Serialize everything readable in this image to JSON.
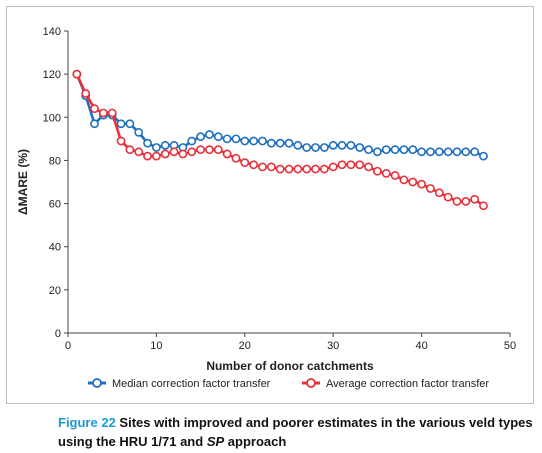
{
  "chart_data": {
    "type": "line",
    "xlabel": "Number of donor catchments",
    "ylabel": "ΔMARE (%)",
    "xlim": [
      0,
      50
    ],
    "ylim": [
      0,
      140
    ],
    "xticks": [
      0,
      10,
      20,
      30,
      40,
      50
    ],
    "yticks": [
      0,
      20,
      40,
      60,
      80,
      100,
      120,
      140
    ],
    "grid": false,
    "legend_position": "bottom",
    "x": [
      1,
      2,
      3,
      4,
      5,
      6,
      7,
      8,
      9,
      10,
      11,
      12,
      13,
      14,
      15,
      16,
      17,
      18,
      19,
      20,
      21,
      22,
      23,
      24,
      25,
      26,
      27,
      28,
      29,
      30,
      31,
      32,
      33,
      34,
      35,
      36,
      37,
      38,
      39,
      40,
      41,
      42,
      43,
      44,
      45,
      46,
      47
    ],
    "series": [
      {
        "name": "Median correction factor transfer",
        "color": "#1f6fbf",
        "values": [
          120,
          110,
          97,
          101,
          101,
          97,
          97,
          93,
          88,
          86,
          87,
          87,
          86,
          89,
          91,
          92,
          91,
          90,
          90,
          89,
          89,
          89,
          88,
          88,
          88,
          87,
          86,
          86,
          86,
          87,
          87,
          87,
          86,
          85,
          84,
          85,
          85,
          85,
          85,
          84,
          84,
          84,
          84,
          84,
          84,
          84,
          82
        ]
      },
      {
        "name": "Average correction factor transfer",
        "color": "#e8303a",
        "values": [
          120,
          111,
          104,
          102,
          102,
          89,
          85,
          84,
          82,
          82,
          83,
          84,
          83,
          84,
          85,
          85,
          85,
          83,
          81,
          79,
          78,
          77,
          77,
          76,
          76,
          76,
          76,
          76,
          76,
          77,
          78,
          78,
          78,
          77,
          75,
          74,
          73,
          71,
          70,
          69,
          67,
          65,
          63,
          61,
          61,
          62,
          59
        ]
      }
    ]
  },
  "caption": {
    "figure_label": "Figure 22",
    "text_before": " Sites with improved and poorer estimates in the various veld types using the HRU 1/71 and ",
    "italic": "SP",
    "text_after": " approach"
  }
}
